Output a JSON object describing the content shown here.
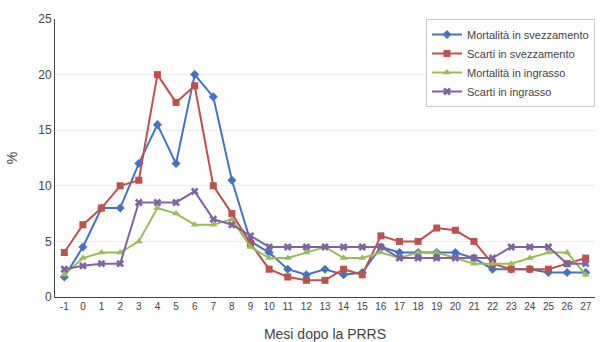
{
  "chart_data": {
    "type": "line",
    "x": [
      -1,
      0,
      1,
      2,
      3,
      4,
      5,
      6,
      7,
      8,
      9,
      10,
      11,
      12,
      13,
      14,
      15,
      16,
      17,
      18,
      19,
      20,
      21,
      22,
      23,
      24,
      25,
      26,
      27
    ],
    "series": [
      {
        "name": "Mortalità in svezzamento",
        "color": "#4472C4",
        "marker": "diamond",
        "values": [
          1.8,
          4.5,
          8.0,
          8.0,
          12.0,
          15.5,
          12.0,
          20.0,
          18.0,
          10.5,
          5.0,
          4.0,
          2.5,
          2.0,
          2.5,
          2.0,
          2.2,
          4.5,
          4.0,
          4.0,
          4.0,
          4.0,
          3.5,
          2.5,
          2.5,
          2.5,
          2.2,
          2.2,
          2.2
        ]
      },
      {
        "name": "Scarti in svezzamento",
        "color": "#C0504D",
        "marker": "square",
        "values": [
          4.0,
          6.5,
          8.0,
          10.0,
          10.5,
          20.0,
          17.5,
          19.0,
          10.0,
          7.5,
          4.8,
          2.5,
          1.8,
          1.5,
          1.5,
          2.5,
          2.0,
          5.5,
          5.0,
          5.0,
          6.2,
          6.0,
          5.0,
          3.0,
          2.5,
          2.5,
          2.5,
          3.0,
          3.5
        ]
      },
      {
        "name": "Mortalità in ingrasso",
        "color": "#9BBB59",
        "marker": "triangle-up",
        "values": [
          2.0,
          3.5,
          4.0,
          4.0,
          5.0,
          8.0,
          7.5,
          6.5,
          6.5,
          7.0,
          4.5,
          3.5,
          3.5,
          4.0,
          4.5,
          3.5,
          3.5,
          4.0,
          3.5,
          4.0,
          4.0,
          3.5,
          3.0,
          3.0,
          3.0,
          3.5,
          4.0,
          4.0,
          2.0
        ]
      },
      {
        "name": "Scarti in ingrasso",
        "color": "#8064A2",
        "marker": "x",
        "values": [
          2.5,
          2.8,
          3.0,
          3.0,
          8.5,
          8.5,
          8.5,
          9.5,
          7.0,
          6.5,
          5.5,
          4.5,
          4.5,
          4.5,
          4.5,
          4.5,
          4.5,
          4.5,
          3.5,
          3.5,
          3.5,
          3.5,
          3.5,
          3.5,
          4.5,
          4.5,
          4.5,
          3.0,
          3.0
        ]
      }
    ],
    "xlabel": "Mesi dopo la PRRS",
    "ylabel": "%",
    "xlim": [
      -1.5,
      27.5
    ],
    "xticks": [
      -1,
      0,
      1,
      2,
      3,
      4,
      5,
      6,
      7,
      8,
      9,
      10,
      11,
      12,
      13,
      14,
      15,
      16,
      17,
      18,
      19,
      20,
      21,
      22,
      23,
      24,
      25,
      26,
      27
    ],
    "ylim": [
      0,
      25
    ],
    "yticks": [
      0,
      5,
      10,
      15,
      20,
      25
    ],
    "grid": true,
    "legend": "upper right"
  }
}
